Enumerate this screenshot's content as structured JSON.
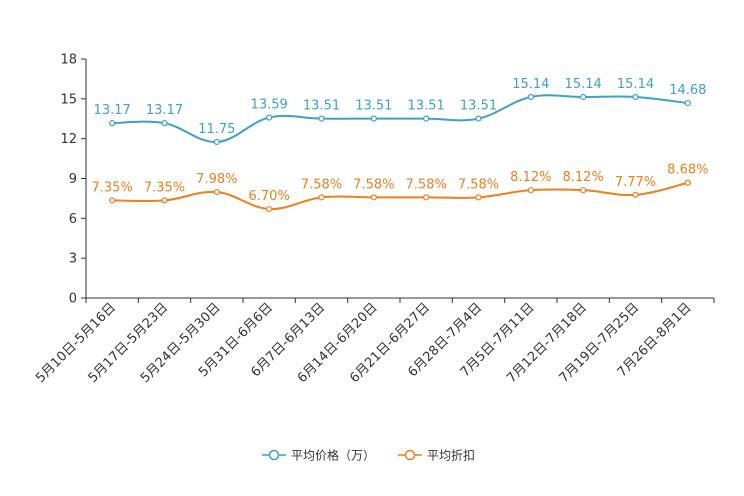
{
  "chart_data": {
    "type": "line",
    "title": "",
    "xlabel": "",
    "ylabel": "",
    "ylim": [
      0,
      18
    ],
    "yticks": [
      0,
      3,
      6,
      9,
      12,
      15,
      18
    ],
    "grid": false,
    "legend_position": "bottom-center",
    "categories": [
      "5月10日-5月16日",
      "5月17日-5月23日",
      "5月24日-5月30日",
      "5月31日-6月6日",
      "6月7日-6月13日",
      "6月14日-6月20日",
      "6月21日-6月27日",
      "6月28日-7月4日",
      "7月5日-7月11日",
      "7月12日-7月18日",
      "7月19日-7月25日",
      "7月26日-8月1日"
    ],
    "series": [
      {
        "name": "平均价格（万）",
        "color": "#3fa0c8",
        "values": [
          13.17,
          13.17,
          11.75,
          13.59,
          13.51,
          13.51,
          13.51,
          13.51,
          15.14,
          15.14,
          15.14,
          14.68
        ],
        "labels": [
          "13.17",
          "13.17",
          "11.75",
          "13.59",
          "13.51",
          "13.51",
          "13.51",
          "13.51",
          "15.14",
          "15.14",
          "15.14",
          "14.68"
        ]
      },
      {
        "name": "平均折扣",
        "color": "#f07f1c",
        "values": [
          7.35,
          7.35,
          7.98,
          6.7,
          7.58,
          7.58,
          7.58,
          7.58,
          8.12,
          8.12,
          7.77,
          8.68
        ],
        "labels": [
          "7.35%",
          "7.35%",
          "7.98%",
          "6.70%",
          "7.58%",
          "7.58%",
          "7.58%",
          "7.58%",
          "8.12%",
          "8.12%",
          "7.77%",
          "8.68%"
        ]
      }
    ]
  }
}
